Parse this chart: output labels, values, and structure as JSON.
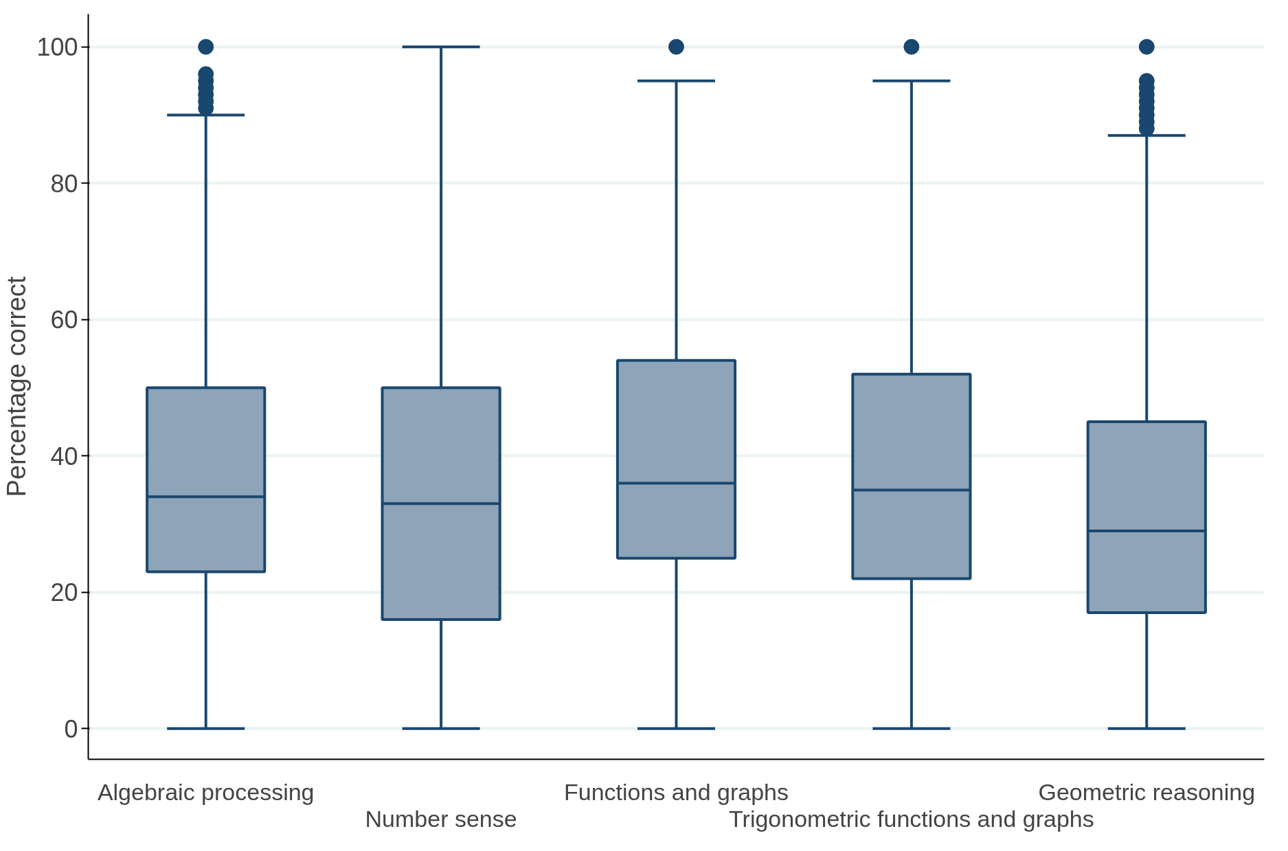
{
  "chart_data": {
    "type": "box",
    "ylabel": "Percentage correct",
    "categories": [
      "Algebraic processing",
      "Number sense",
      "Functions and graphs",
      "Trigonometric functions and graphs",
      "Geometric reasoning"
    ],
    "boxes": [
      {
        "low": 0,
        "q1": 23,
        "median": 34,
        "q3": 50,
        "high": 90,
        "outliers": [
          91,
          92,
          93,
          94,
          95,
          96,
          100
        ]
      },
      {
        "low": 0,
        "q1": 16,
        "median": 33,
        "q3": 50,
        "high": 100
      },
      {
        "low": 0,
        "q1": 25,
        "median": 36,
        "q3": 54,
        "high": 95,
        "outliers": [
          100
        ]
      },
      {
        "low": 0,
        "q1": 22,
        "median": 35,
        "q3": 52,
        "high": 95,
        "outliers": [
          100
        ]
      },
      {
        "low": 0,
        "q1": 17,
        "median": 29,
        "q3": 45,
        "high": 87,
        "outliers": [
          88,
          89,
          90,
          91,
          92,
          93,
          94,
          95,
          100
        ]
      }
    ],
    "color": "#8ea4b8",
    "ylim": [
      -4.5,
      104.8
    ],
    "yticks": [
      0,
      20,
      40,
      60,
      80,
      100
    ],
    "grid": "y"
  }
}
